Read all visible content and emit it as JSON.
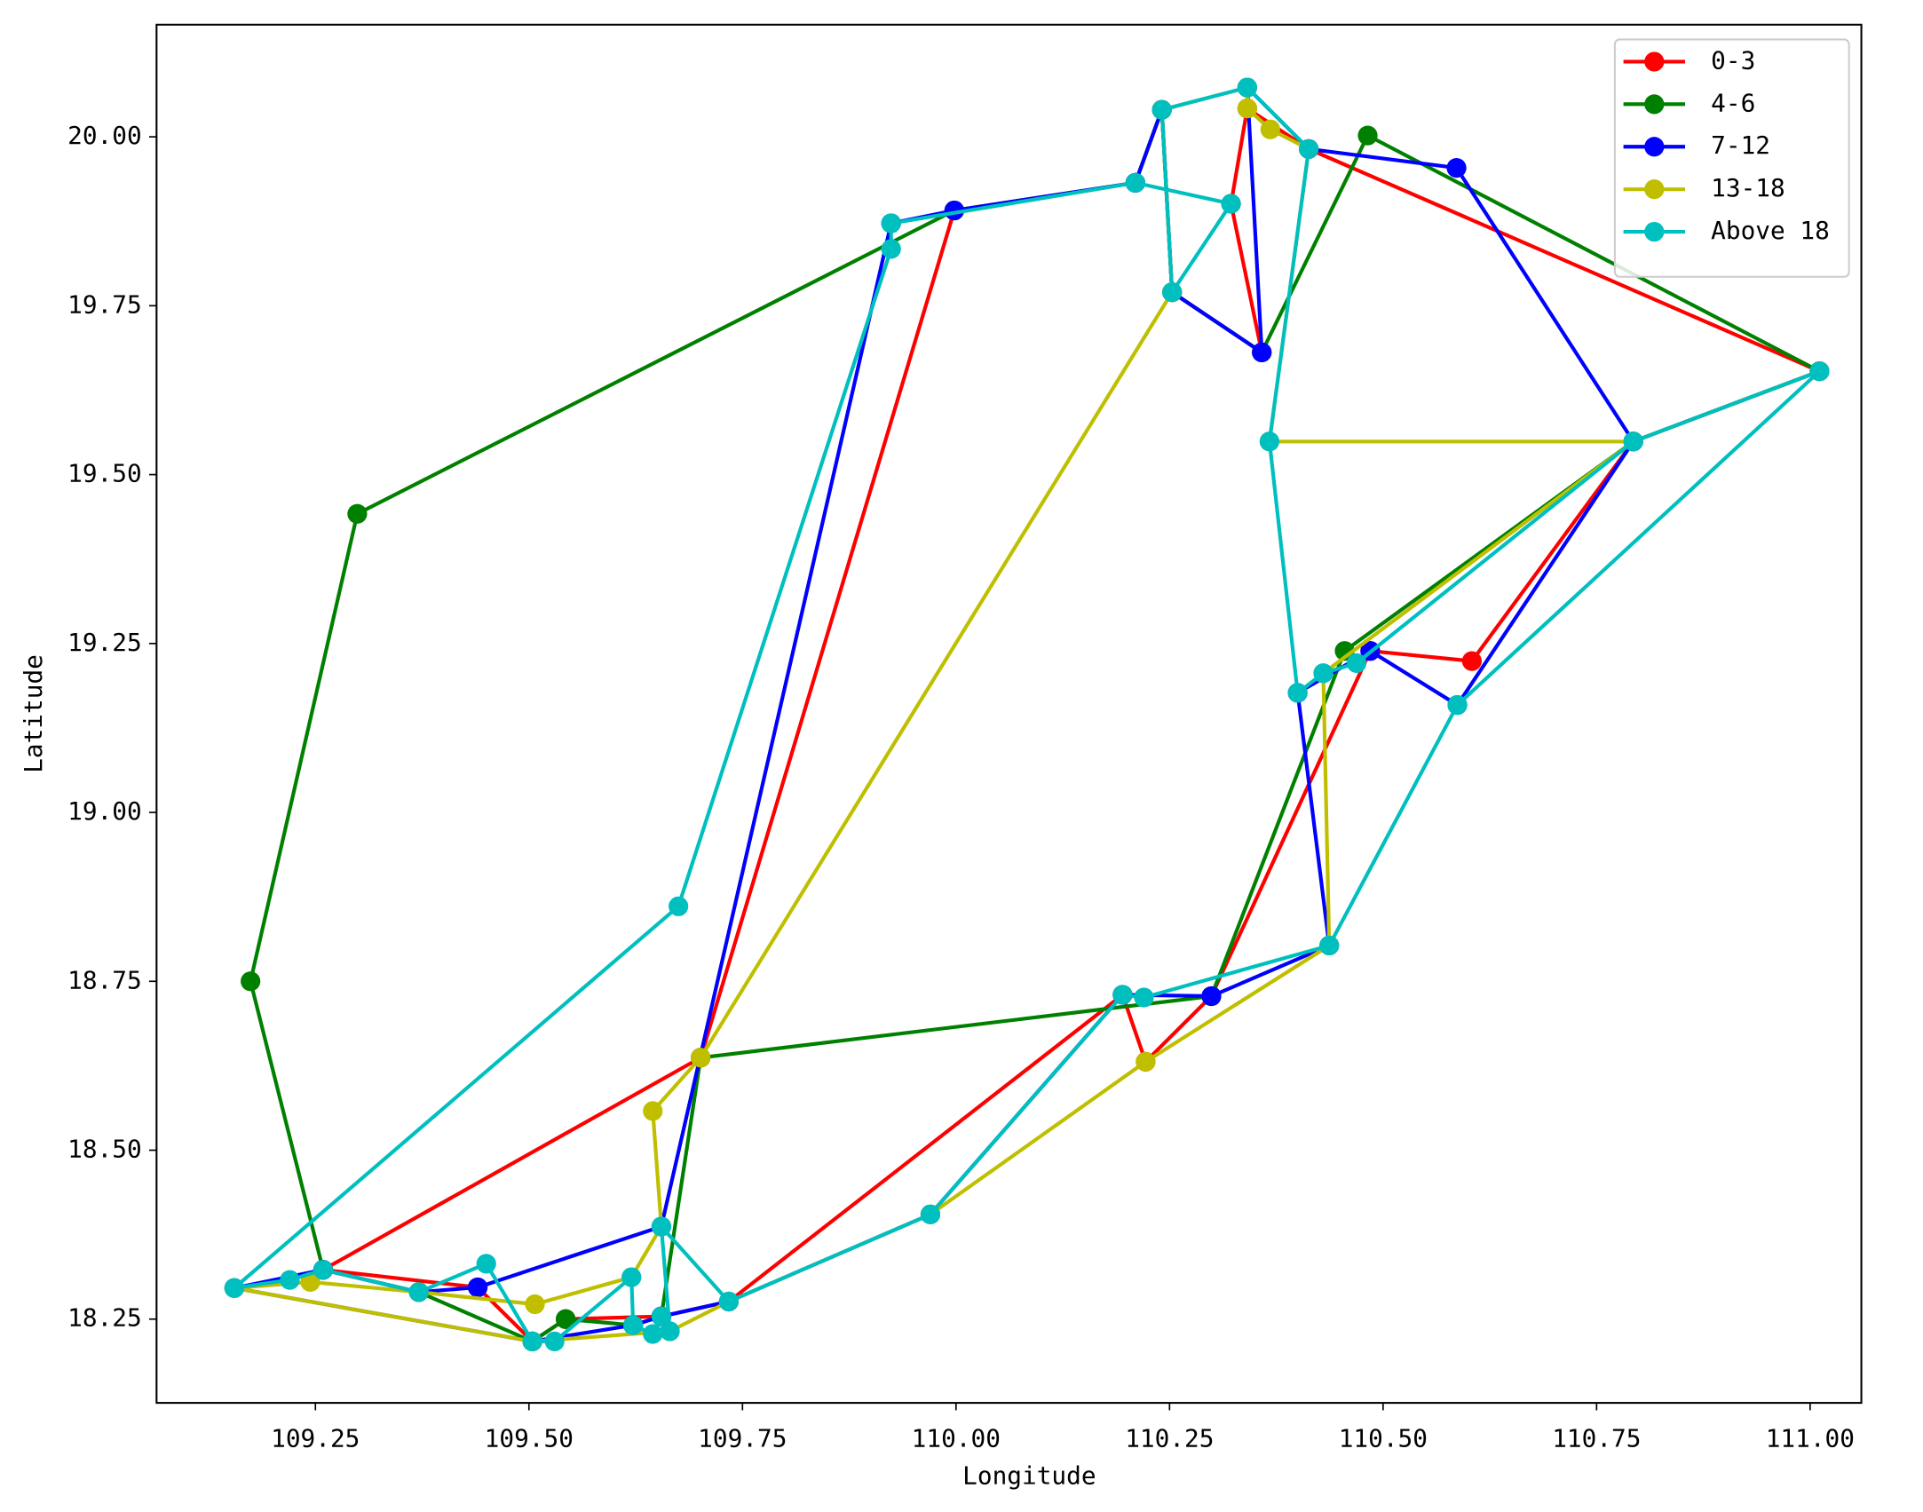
{
  "chart_data": {
    "type": "line",
    "xlabel": "Longitude",
    "ylabel": "Latitude",
    "xlim": [
      109.064,
      111.06
    ],
    "ylim": [
      18.126,
      20.166
    ],
    "xticks": [
      109.25,
      {
        "value": 109.5,
        "label": "109.50"
      },
      109.75,
      {
        "value": 110,
        "label": "110.00"
      },
      110.25,
      {
        "value": 110.5,
        "label": "110.50"
      },
      110.75,
      {
        "value": 111,
        "label": "111.00"
      }
    ],
    "yticks": [
      18.25,
      {
        "value": 18.5,
        "label": "18.50"
      },
      18.75,
      {
        "value": 19,
        "label": "19.00"
      },
      19.25,
      {
        "value": 19.5,
        "label": "19.50"
      },
      19.75,
      {
        "value": 20,
        "label": "20.00"
      }
    ],
    "legend": "upper right",
    "series": [
      {
        "name": "0-3",
        "color": "#ff0000",
        "x": [
          109.259,
          109.44,
          109.504,
          109.543,
          109.655,
          109.734,
          110.195,
          110.222,
          110.299,
          110.485,
          110.604,
          110.793,
          111.011,
          110.413,
          110.341,
          110.322,
          110.358,
          110.253,
          110.241,
          110.21,
          109.998,
          109.701,
          109.259
        ],
        "values": [
          18.323,
          18.297,
          18.217,
          18.25,
          18.254,
          18.276,
          18.73,
          18.631,
          18.728,
          19.239,
          19.224,
          19.549,
          19.653,
          19.982,
          20.042,
          19.901,
          19.681,
          19.77,
          20.04,
          19.932,
          19.891,
          18.637,
          18.323
        ]
      },
      {
        "name": "4-6",
        "color": "#008000",
        "x": [
          109.543,
          109.504,
          109.371,
          109.259,
          109.174,
          109.299,
          109.998,
          110.21,
          110.241,
          110.253,
          110.358,
          110.482,
          111.011,
          110.793,
          110.455,
          110.299,
          109.701,
          109.655,
          109.622,
          109.543
        ],
        "values": [
          18.25,
          18.217,
          18.29,
          18.323,
          18.75,
          19.442,
          19.891,
          19.932,
          20.04,
          19.77,
          19.681,
          20.002,
          19.653,
          19.549,
          19.239,
          18.728,
          18.637,
          18.254,
          18.241,
          18.25
        ]
      },
      {
        "name": "7-12",
        "color": "#0000ff",
        "x": [
          109.155,
          109.259,
          109.371,
          109.44,
          109.655,
          109.924,
          109.998,
          110.21,
          110.241,
          110.253,
          110.358,
          110.341,
          110.413,
          110.586,
          110.793,
          110.587,
          110.485,
          110.4,
          110.437,
          110.299,
          110.195,
          109.97,
          109.734,
          109.655,
          109.622,
          109.504,
          109.155
        ],
        "values": [
          18.296,
          18.323,
          18.29,
          18.297,
          18.387,
          19.872,
          19.891,
          19.932,
          20.04,
          19.77,
          19.681,
          20.073,
          19.982,
          19.954,
          19.549,
          19.159,
          19.239,
          19.177,
          18.803,
          18.728,
          18.73,
          18.405,
          18.276,
          18.254,
          18.241,
          18.217,
          18.296
        ]
      },
      {
        "name": "13-18",
        "color": "#bfbf00",
        "x": [
          109.155,
          109.504,
          109.665,
          109.734,
          109.97,
          110.222,
          110.437,
          110.43,
          110.793,
          110.367,
          110.413,
          110.368,
          110.341,
          110.341,
          110.241,
          110.253,
          109.701,
          109.645,
          109.655,
          109.62,
          109.507,
          109.371,
          109.244,
          109.155
        ],
        "values": [
          18.296,
          18.217,
          18.232,
          18.276,
          18.405,
          18.631,
          18.803,
          19.206,
          19.549,
          19.549,
          19.982,
          20.011,
          20.042,
          20.073,
          20.04,
          19.77,
          18.637,
          18.558,
          18.387,
          18.312,
          18.272,
          18.29,
          18.305,
          18.296
        ]
      },
      {
        "name": "Above 18",
        "color": "#00bfbf",
        "x": [
          109.155,
          109.22,
          109.259,
          109.371,
          109.45,
          109.504,
          109.53,
          109.62,
          109.622,
          109.645,
          109.655,
          109.665,
          109.655,
          109.734,
          109.97,
          110.195,
          110.22,
          110.437,
          110.587,
          111.011,
          110.793,
          110.469,
          110.43,
          110.4,
          110.367,
          110.413,
          110.341,
          110.241,
          110.253,
          110.322,
          110.21,
          109.924,
          109.924,
          109.675,
          109.155
        ],
        "values": [
          18.296,
          18.308,
          18.323,
          18.29,
          18.332,
          18.217,
          18.217,
          18.312,
          18.241,
          18.228,
          18.254,
          18.232,
          18.387,
          18.276,
          18.405,
          18.73,
          18.726,
          18.803,
          19.159,
          19.653,
          19.549,
          19.221,
          19.206,
          19.177,
          19.549,
          19.982,
          20.073,
          20.04,
          19.77,
          19.901,
          19.932,
          19.872,
          19.834,
          18.861,
          18.296
        ]
      }
    ]
  }
}
